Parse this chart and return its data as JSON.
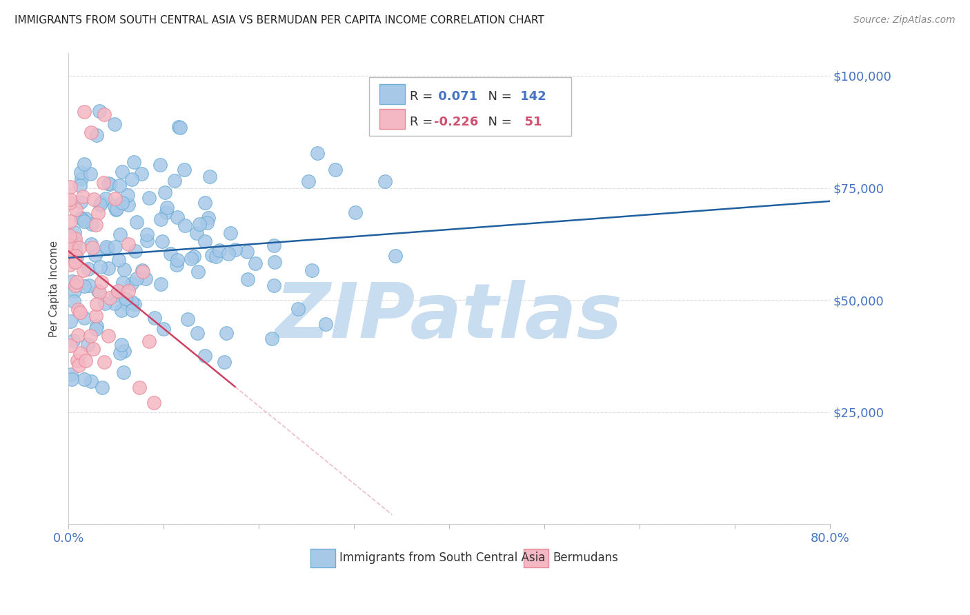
{
  "title": "IMMIGRANTS FROM SOUTH CENTRAL ASIA VS BERMUDAN PER CAPITA INCOME CORRELATION CHART",
  "source": "Source: ZipAtlas.com",
  "ylabel": "Per Capita Income",
  "xlim": [
    0.0,
    0.8
  ],
  "ylim": [
    0,
    105000
  ],
  "yticks": [
    0,
    25000,
    50000,
    75000,
    100000
  ],
  "ytick_labels": [
    "",
    "$25,000",
    "$50,000",
    "$75,000",
    "$100,000"
  ],
  "xticks": [
    0.0,
    0.1,
    0.2,
    0.3,
    0.4,
    0.5,
    0.6,
    0.7,
    0.8
  ],
  "blue_dot_color": "#a8c8e8",
  "blue_dot_edge": "#6baed6",
  "pink_dot_color": "#f4b8c4",
  "pink_dot_edge": "#e88898",
  "blue_line_color": "#2060a0",
  "pink_line_color": "#d04060",
  "pink_dash_color": "#e8a0b0",
  "R_blue": 0.071,
  "N_blue": 142,
  "R_pink": -0.226,
  "N_pink": 51,
  "watermark": "ZIPatlas",
  "watermark_color": "#c8ddf0",
  "background_color": "#ffffff",
  "grid_color": "#dddddd",
  "title_color": "#222222",
  "source_color": "#888888",
  "tick_color": "#4472c4",
  "legend_color_blue": "#4472c4",
  "legend_color_pink": "#d05070",
  "legend_color_n_blue": "#4472c4",
  "legend_color_n_pink": "#d05070"
}
